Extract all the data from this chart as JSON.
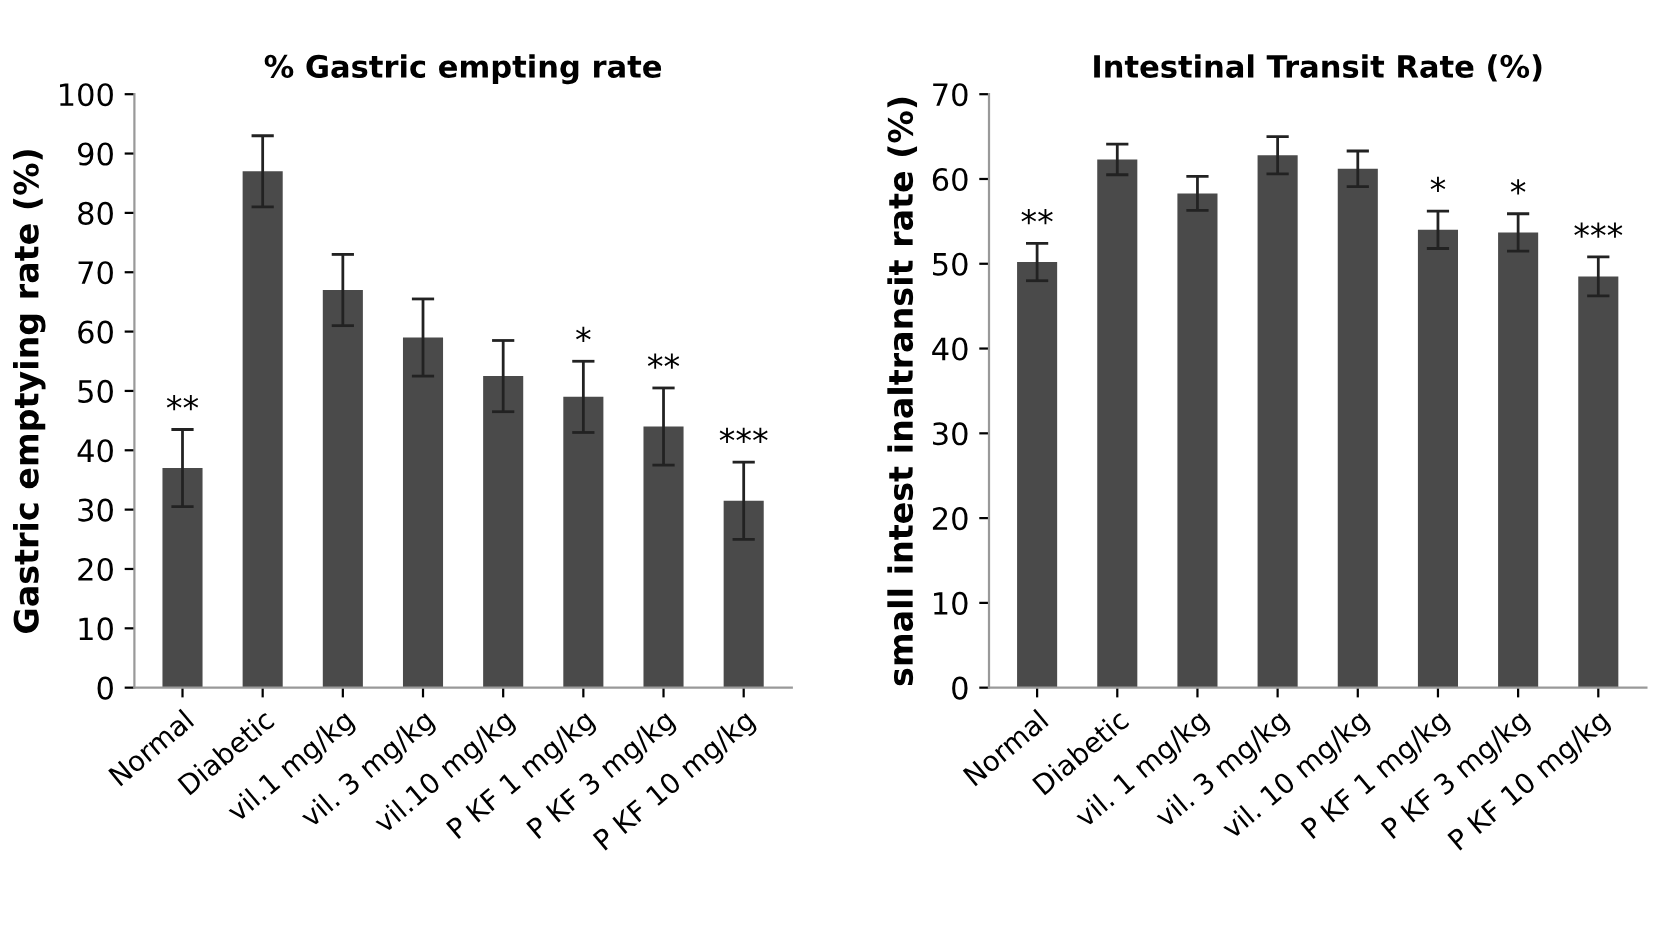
{
  "chart_data": [
    {
      "type": "bar",
      "title": "% Gastric empting rate",
      "ylabel": "Gastric emptying rate (%)",
      "categories": [
        "Normal",
        "Diabetic",
        "vil.1 mg/kg",
        "vil. 3 mg/kg",
        "vil.10 mg/kg",
        "P KF 1 mg/kg",
        "P KF 3 mg/kg",
        "P KF 10 mg/kg"
      ],
      "series": [
        {
          "color": "#4a4a4a",
          "values": [
            37,
            87,
            67,
            59,
            52.5,
            49,
            44,
            31.5
          ],
          "errors": [
            6.5,
            6,
            6,
            6.5,
            6,
            6,
            6.5,
            6.5
          ]
        }
      ],
      "ylim": [
        0,
        100
      ],
      "yticks": [
        0,
        10,
        20,
        30,
        40,
        50,
        60,
        70,
        80,
        90,
        100
      ],
      "grid": false,
      "annotations": [
        {
          "text": "**",
          "x": "Normal",
          "y": 43.5
        },
        {
          "text": "*",
          "x": "P KF 1 mg/kg",
          "y": 55
        },
        {
          "text": "**",
          "x": "P KF 3 mg/kg",
          "y": 50.5
        },
        {
          "text": "***",
          "x": "P KF 10 mg/kg",
          "y": 38
        }
      ]
    },
    {
      "type": "bar",
      "title": "Intestinal Transit Rate (%)",
      "ylabel": "small intest inaltransit rate (%)",
      "categories": [
        "Normal",
        "Diabetic",
        "vil. 1 mg/kg",
        "vil. 3 mg/kg",
        "vil. 10 mg/kg",
        "P KF 1 mg/kg",
        "P KF 3 mg/kg",
        "P KF 10 mg/kg"
      ],
      "series": [
        {
          "color": "#4a4a4a",
          "values": [
            50.2,
            62.3,
            58.3,
            62.8,
            61.2,
            54,
            53.7,
            48.5
          ],
          "errors": [
            2.2,
            1.8,
            2,
            2.2,
            2.1,
            2.2,
            2.2,
            2.3
          ]
        }
      ],
      "ylim": [
        0,
        70
      ],
      "yticks": [
        0,
        10,
        20,
        30,
        40,
        50,
        60,
        70
      ],
      "grid": false,
      "annotations": [
        {
          "text": "**",
          "x": "Normal",
          "y": 52.4
        },
        {
          "text": "*",
          "x": "P KF 1 mg/kg",
          "y": 56.2
        },
        {
          "text": "*",
          "x": "P KF 3 mg/kg",
          "y": 55.9
        },
        {
          "text": "***",
          "x": "P KF 10 mg/kg",
          "y": 50.8
        }
      ]
    }
  ]
}
